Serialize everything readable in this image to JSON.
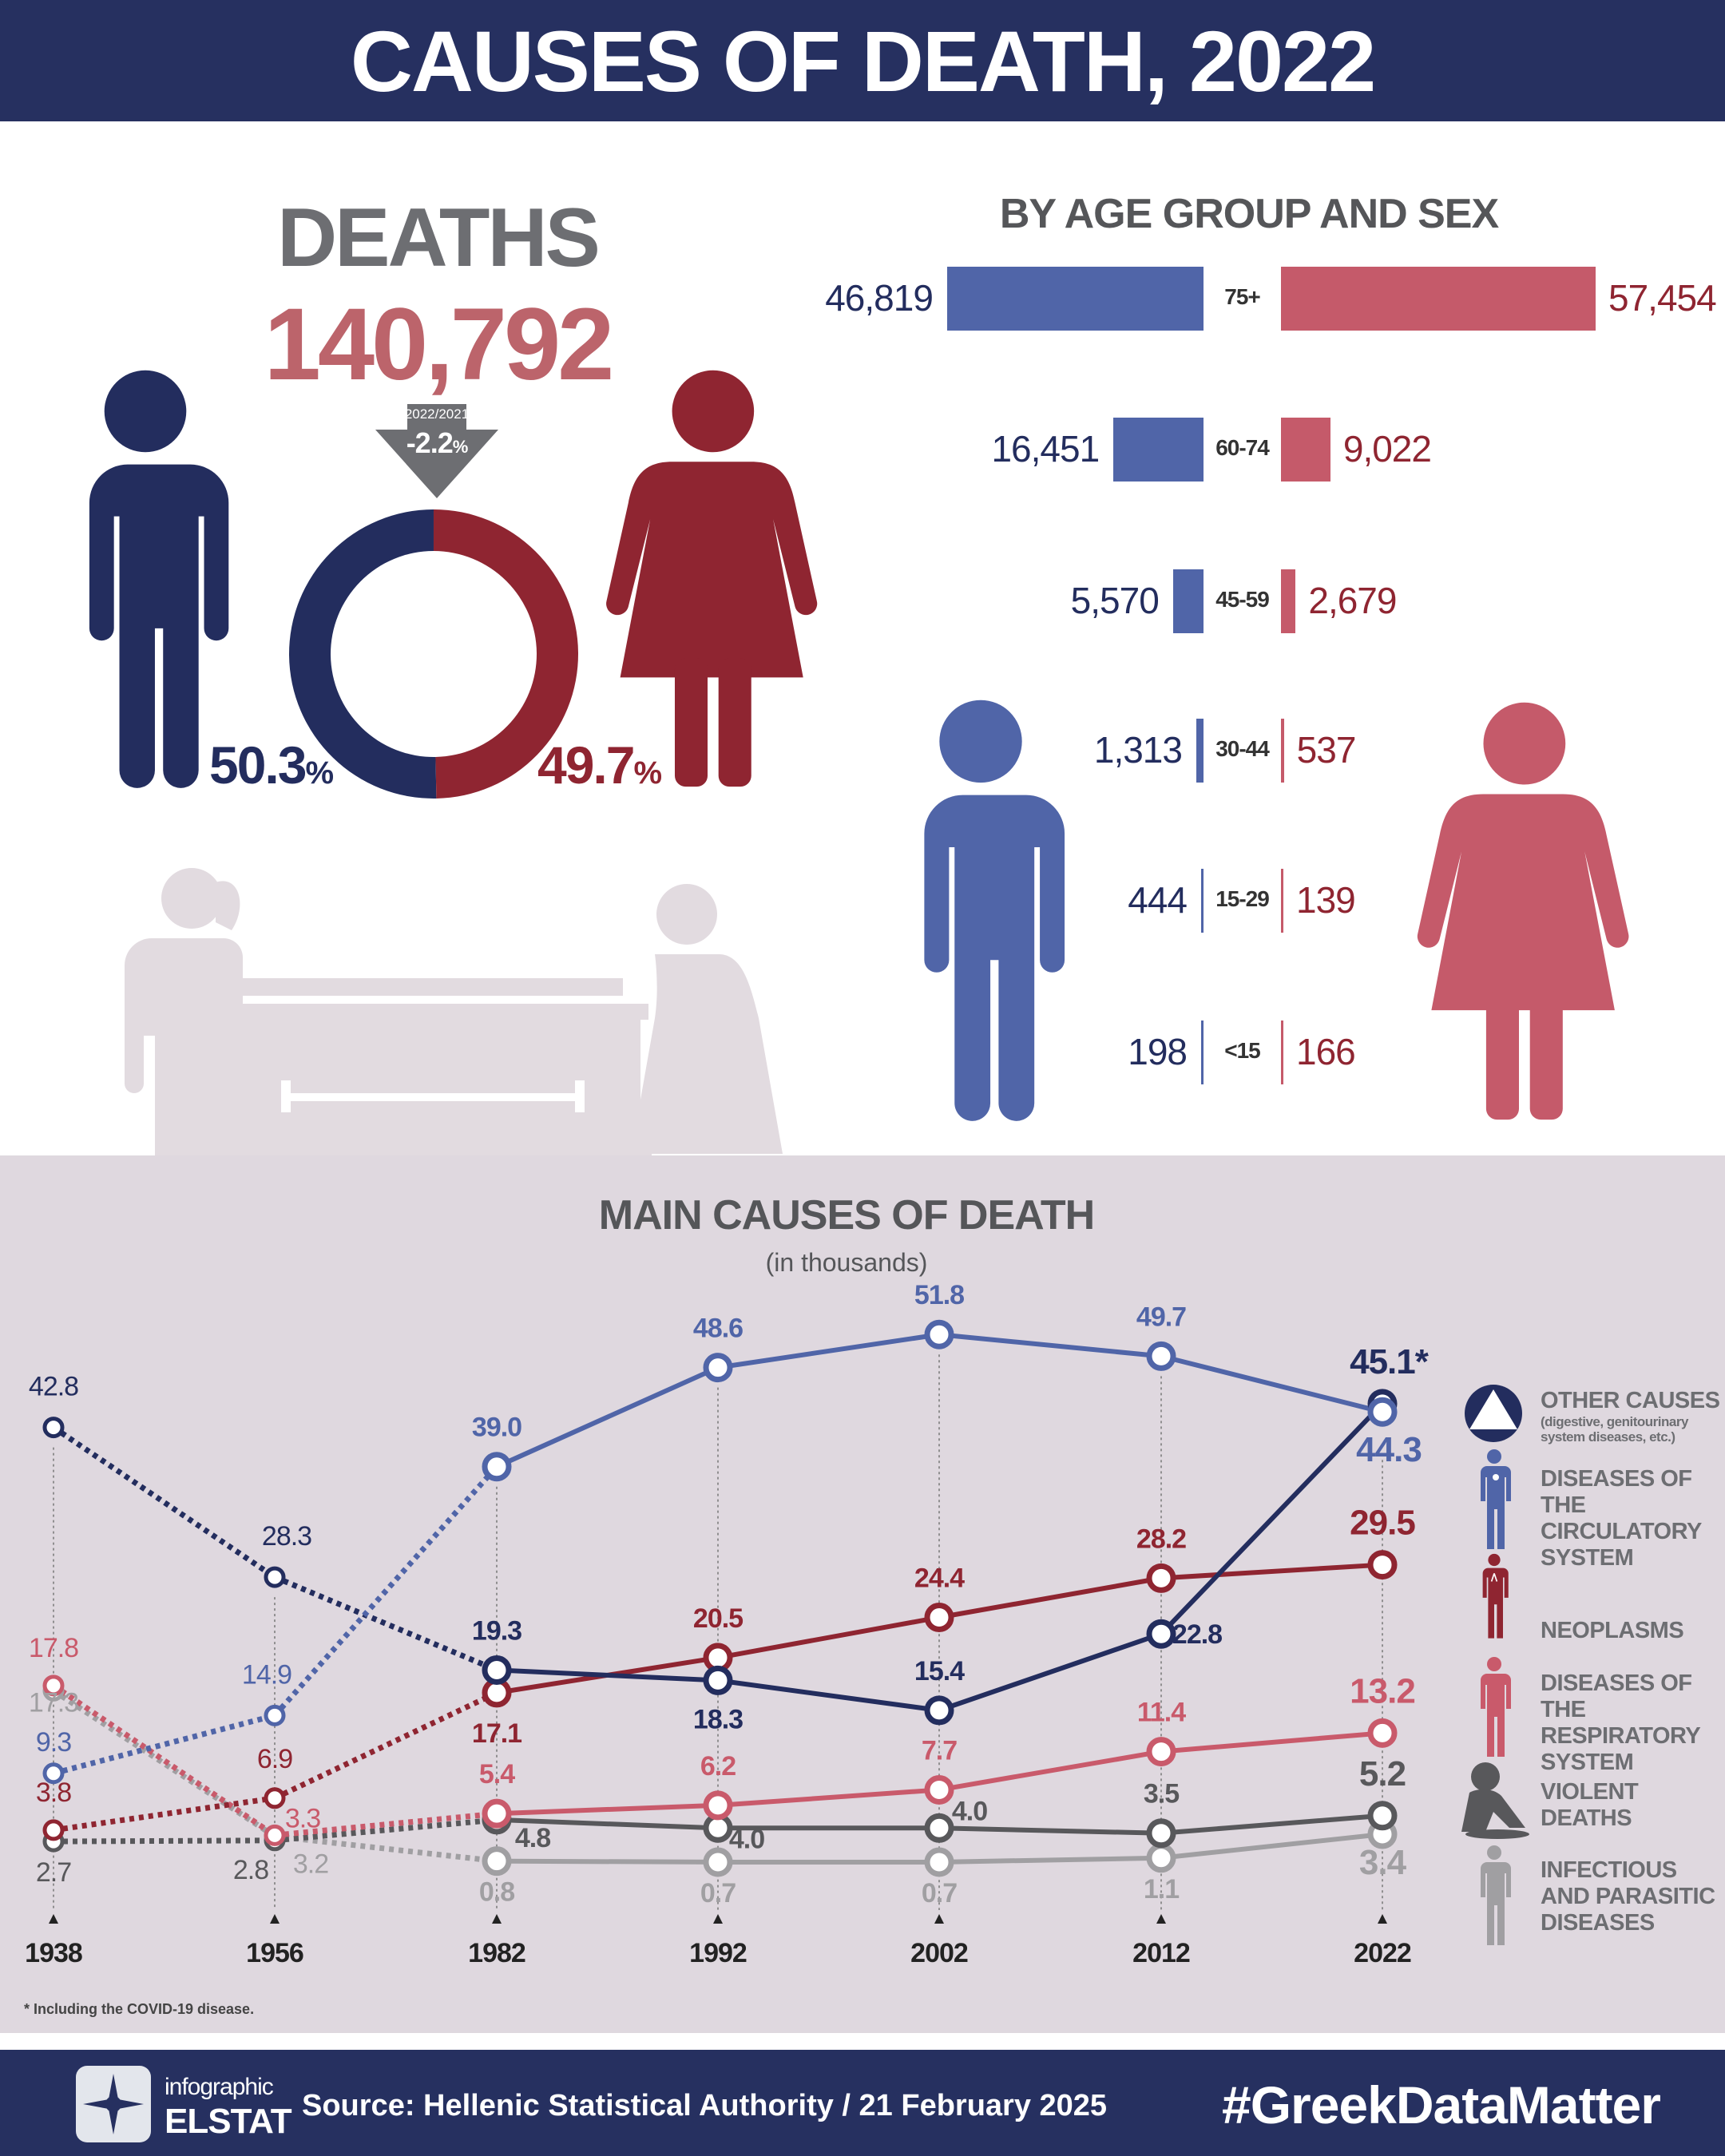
{
  "header": {
    "title": "CAUSES OF DEATH, 2022"
  },
  "totals": {
    "label": "DEATHS",
    "value": "140,792",
    "change_period": "2022/2021",
    "change_value": "-2.2",
    "change_unit": "%",
    "male_pct": "50.3",
    "female_pct": "49.7",
    "pct_unit": "%",
    "male_share": 50.3,
    "female_share": 49.7
  },
  "age_groups": {
    "title": "BY AGE GROUP AND SEX",
    "rows": [
      {
        "group": "75+",
        "male": 46819,
        "female": 57454,
        "male_label": "46,819",
        "female_label": "57,454"
      },
      {
        "group": "60-74",
        "male": 16451,
        "female": 9022,
        "male_label": "16,451",
        "female_label": "9,022"
      },
      {
        "group": "45-59",
        "male": 5570,
        "female": 2679,
        "male_label": "5,570",
        "female_label": "2,679"
      },
      {
        "group": "30-44",
        "male": 1313,
        "female": 537,
        "male_label": "1,313",
        "female_label": "537"
      },
      {
        "group": "15-29",
        "male": 444,
        "female": 139,
        "male_label": "444",
        "female_label": "139"
      },
      {
        "group": "<15",
        "male": 198,
        "female": 166,
        "male_label": "198",
        "female_label": "166"
      }
    ]
  },
  "colors": {
    "navy": "#232d5e",
    "blue": "#5065a8",
    "dark_red": "#8f2531",
    "pink": "#c95a6b",
    "dark_gray": "#58585b",
    "light_gray": "#a09fa2",
    "panel": "#dfd8df",
    "band": "#263060"
  },
  "chart_data": {
    "type": "line",
    "title": "MAIN CAUSES OF DEATH",
    "subtitle": "(in thousands)",
    "categories": [
      "1938",
      "1956",
      "1982",
      "1992",
      "2002",
      "2012",
      "2022"
    ],
    "ylim": [
      0,
      55
    ],
    "grid": false,
    "legend_placement": "right",
    "series": [
      {
        "name": "OTHER CAUSES",
        "note": "(digestive, genitourinary system diseases, etc.)",
        "color": "#232d5e",
        "icon": "triangle-in-circle-icon",
        "values": [
          42.8,
          28.3,
          19.3,
          18.3,
          15.4,
          22.8,
          45.1
        ],
        "labels": [
          "42.8",
          "28.3",
          "19.3",
          "18.3",
          "15.4",
          "22.8",
          "45.1*"
        ]
      },
      {
        "name": "DISEASES OF THE CIRCULATORY SYSTEM",
        "color": "#5065a8",
        "icon": "person-heart-icon",
        "values": [
          9.3,
          14.9,
          39.0,
          48.6,
          51.8,
          49.7,
          44.3
        ],
        "labels": [
          "9.3",
          "14.9",
          "39.0",
          "48.6",
          "51.8",
          "49.7",
          "44.3"
        ]
      },
      {
        "name": "NEOPLASMS",
        "color": "#8f2531",
        "icon": "person-ribbon-icon",
        "values": [
          3.8,
          6.9,
          17.1,
          20.5,
          24.4,
          28.2,
          29.5
        ],
        "labels": [
          "3.8",
          "6.9",
          "17.1",
          "20.5",
          "24.4",
          "28.2",
          "29.5"
        ]
      },
      {
        "name": "DISEASES OF THE RESPIRATORY SYSTEM",
        "color": "#c95a6b",
        "icon": "person-lungs-icon",
        "values": [
          17.8,
          3.3,
          5.4,
          6.2,
          7.7,
          11.4,
          13.2
        ],
        "labels": [
          "17.8",
          "3.3",
          "5.4",
          "6.2",
          "7.7",
          "11.4",
          "13.2"
        ]
      },
      {
        "name": "VIOLENT DEATHS",
        "color": "#58585b",
        "icon": "injured-person-icon",
        "values": [
          2.7,
          2.8,
          4.8,
          4.0,
          4.0,
          3.5,
          5.2
        ],
        "labels": [
          "2.7",
          "2.8",
          "4.8",
          "4.0",
          "4.0",
          "3.5",
          "5.2"
        ]
      },
      {
        "name": "INFECTIOUS AND PARASITIC DISEASES",
        "color": "#a09fa2",
        "icon": "sick-person-icon",
        "values": [
          17.3,
          3.2,
          0.8,
          0.7,
          0.7,
          1.1,
          3.4
        ],
        "labels": [
          "17.3",
          "3.2",
          "0.8",
          "0.7",
          "0.7",
          "1.1",
          "3.4"
        ]
      }
    ],
    "footnote": "* Including the COVID-19 disease."
  },
  "legend": {
    "other": "OTHER  CAUSES",
    "other_note": "(digestive, genitourinary system  diseases, etc.)",
    "circulatory": "DISEASES OF THE CIRCULATORY SYSTEM",
    "neoplasms": "NEOPLASMS",
    "respiratory": "DISEASES OF THE RESPIRATORY SYSTEM",
    "violent": "VIOLENT DEATHS",
    "infectious": "INFECTIOUS AND PARASITIC DISEASES"
  },
  "footer": {
    "logo_top": "infographic",
    "logo_bottom": "ELSTAT",
    "source": "Source: Hellenic Statistical Authority / 21 February 2025",
    "hashtag": "#GreekDataMatter"
  }
}
